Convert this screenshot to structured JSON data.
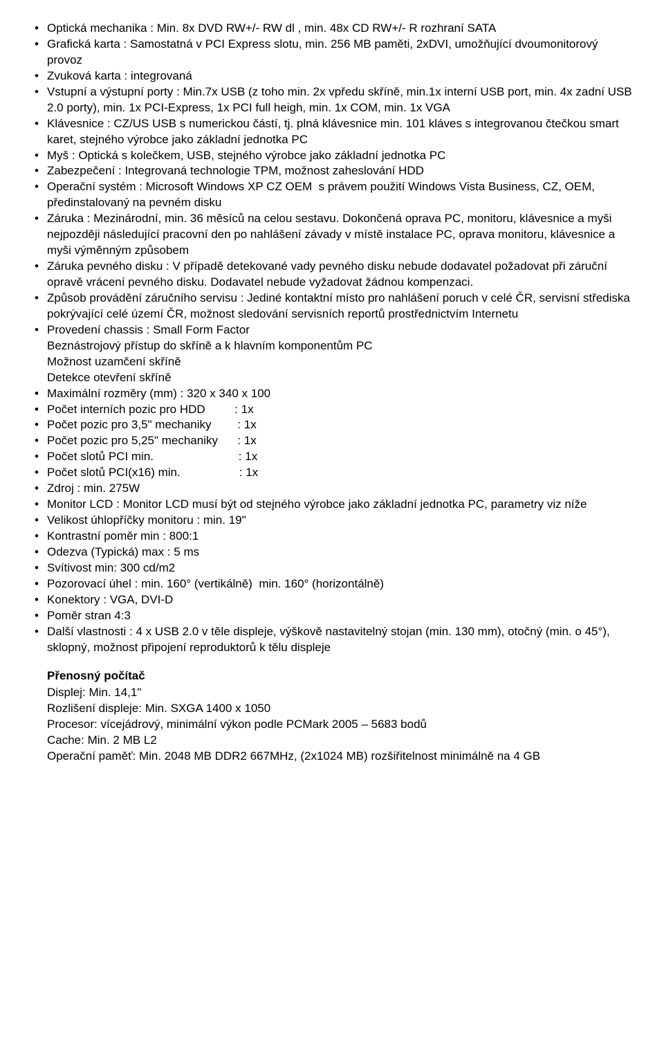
{
  "font": {
    "family": "Arial",
    "size_pt": 13,
    "color": "#000000",
    "bg": "#ffffff"
  },
  "bullets": [
    "Optická mechanika : Min. 8x DVD RW+/- RW dl , min. 48x CD RW+/- R rozhraní SATA",
    "Grafická karta : Samostatná v PCI Express slotu, min. 256 MB paměti, 2xDVI, umožňující dvoumonitorový provoz",
    "Zvuková karta : integrovaná",
    "Vstupní a výstupní porty : Min.7x USB (z toho min. 2x vpředu skříně, min.1x interní USB port, min. 4x zadní USB 2.0 porty), min. 1x PCI-Express, 1x PCI full heigh, min. 1x COM, min. 1x VGA",
    "Klávesnice : CZ/US USB s numerickou částí, tj. plná klávesnice min. 101 kláves s integrovanou čtečkou smart karet, stejného výrobce jako základní jednotka PC",
    "Myš : Optická s kolečkem, USB, stejného výrobce jako základní jednotka PC",
    "Zabezpečení : Integrovaná technologie TPM, možnost zaheslování HDD",
    "Operační systém : Microsoft Windows XP CZ OEM  s právem použití Windows Vista Business, CZ, OEM,  předinstalovaný na pevném disku",
    "Záruka : Mezinárodní, min. 36 měsíců na celou sestavu. Dokončená oprava PC, monitoru, klávesnice a myši nejpozději následující pracovní den po nahlášení závady v místě instalace PC, oprava monitoru, klávesnice a myši výměnným způsobem",
    "Záruka pevného disku : V případě detekované vady pevného disku nebude dodavatel požadovat při záruční opravě vrácení pevného disku. Dodavatel nebude vyžadovat žádnou kompenzaci.",
    "Způsob provádění záručního servisu : Jediné kontaktní místo pro nahlášení poruch v celé ČR, servisní střediska pokrývající celé území ČR, možnost sledování servisních reportů prostřednictvím Internetu",
    "Provedení chassis : Small Form Factor\nBeznástrojový přístup do skříně a k hlavním komponentům PC\nMožnost uzamčení skříně\nDetekce otevření skříně",
    "Maximální rozměry (mm) : 320 x 340 x 100",
    "Počet interních pozic pro HDD         : 1x",
    "Počet pozic pro 3,5\" mechaniky        : 1x",
    "Počet pozic pro 5,25\" mechaniky      : 1x",
    "Počet slotů PCI min.                          : 1x",
    "Počet slotů PCI(x16) min.                  : 1x",
    "Zdroj : min. 275W",
    "Monitor LCD : Monitor LCD musí být od stejného výrobce jako základní jednotka PC, parametry viz níže",
    "Velikost úhlopříčky monitoru : min. 19\"",
    "Kontrastní poměr min : 800:1",
    "Odezva (Typická) max : 5 ms",
    "Svítivost min: 300 cd/m2",
    "Pozorovací úhel : min. 160° (vertikálně)  min. 160° (horizontálně)",
    "Konektory : VGA, DVI-D",
    "Poměr stran 4:3",
    "Další vlastnosti : 4 x USB 2.0 v těle displeje, výškově nastavitelný stojan (min. 130 mm), otočný (min. o 45°), sklopný, možnost připojení reproduktorů k tělu displeje"
  ],
  "section2": {
    "title": "Přenosný počítač",
    "lines": [
      "Displej: Min. 14,1\"",
      "Rozlišení displeje: Min. SXGA 1400 x 1050",
      "Procesor: vícejádrový, minimální výkon podle PCMark 2005 – 5683 bodů",
      "Cache: Min. 2 MB L2",
      "Operační paměť: Min. 2048 MB DDR2 667MHz, (2x1024 MB) rozšiřitelnost minimálně na 4 GB"
    ]
  }
}
